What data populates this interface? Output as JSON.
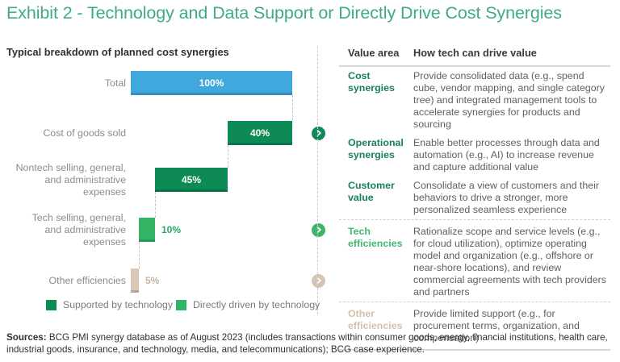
{
  "title": "Exhibit 2 - Technology and Data Support or Directly Drive Cost Synergies",
  "chart": {
    "subtitle": "Typical breakdown of planned cost synergies"
  },
  "chart_data": {
    "type": "bar",
    "subtype": "horizontal-waterfall",
    "title": "Typical breakdown of planned cost synergies",
    "xlim": [
      0,
      100
    ],
    "grid": false,
    "categories": [
      "Total",
      "Cost of goods sold",
      "Nontech selling, general,\nand administrative expenses",
      "Tech selling, general,\nand administrative expenses",
      "Other efficiencies"
    ],
    "values": [
      100,
      40,
      45,
      10,
      5
    ],
    "value_labels": [
      "100%",
      "40%",
      "45%",
      "10%",
      "5%"
    ],
    "bars": [
      {
        "category": "Total",
        "value": 100,
        "start": 0,
        "label": "100%",
        "color": "#41A8DE",
        "label_placement": "inside",
        "label_color": "#FFFFFF"
      },
      {
        "category": "Cost of goods sold",
        "value": 40,
        "start": 60,
        "label": "40%",
        "color": "#0E8A57",
        "label_placement": "inside",
        "label_color": "#FFFFFF"
      },
      {
        "category": "Nontech selling, general,\nand administrative expenses",
        "value": 45,
        "start": 15,
        "label": "45%",
        "color": "#0E8A57",
        "label_placement": "inside",
        "label_color": "#FFFFFF"
      },
      {
        "category": "Tech selling, general,\nand administrative expenses",
        "value": 10,
        "start": 5,
        "label": "10%",
        "color": "#33B465",
        "label_placement": "outside",
        "label_color": "#2CA95F"
      },
      {
        "category": "Other efficiencies",
        "value": 5,
        "start": 0,
        "label": "5%",
        "color": "#D9C6B5",
        "label_placement": "outside",
        "label_color": "#CBB29E"
      }
    ],
    "legend": [
      {
        "label": "Supported by technology",
        "color": "#0E8A57"
      },
      {
        "label": "Directly driven by technology",
        "color": "#33B465"
      }
    ],
    "legend_position": "bottom",
    "link_icons": [
      {
        "row": 1,
        "color": "#0E8A57"
      },
      {
        "row": 3,
        "color": "#3CB56A"
      },
      {
        "row": 4,
        "color": "#D6C3B2"
      }
    ]
  },
  "table": {
    "headers": [
      "Value area",
      "How tech can drive value"
    ],
    "rows": [
      {
        "area": "Cost synergies",
        "color": "#17805C",
        "desc": "Provide consolidated data (e.g., spend cube, vendor mapping, and single category tree) and integrated management tools to accelerate synergies for products and sourcing"
      },
      {
        "area": "Operational synergies",
        "color": "#17805C",
        "desc": "Enable better processes through data and automation (e.g., AI) to increase revenue and capture additional value"
      },
      {
        "area": "Customer value",
        "color": "#17805C",
        "desc": "Consolidate a view of customers and their behaviors to drive a stronger, more personalized seamless experience"
      },
      {
        "area": "Tech efficiencies",
        "color": "#41B873",
        "desc": "Rationalize scope and service levels (e.g., for cloud utilization), optimize operating model and organization (e.g., offshore or near-shore locations), and review commercial agreements with tech providers and partners"
      },
      {
        "area": "Other efficiencies",
        "color": "#D4BFAD",
        "desc": "Provide limited support (e.g., for procurement terms, organization, and compensation)"
      }
    ]
  },
  "footer": {
    "sources_label": "Sources:",
    "sources_text": " BCG PMI synergy database as of August 2023 (includes transactions within consumer goods, energy, financial institutions, health care, industrial goods, insurance, and technology, media, and telecommunications); BCG case experience."
  }
}
